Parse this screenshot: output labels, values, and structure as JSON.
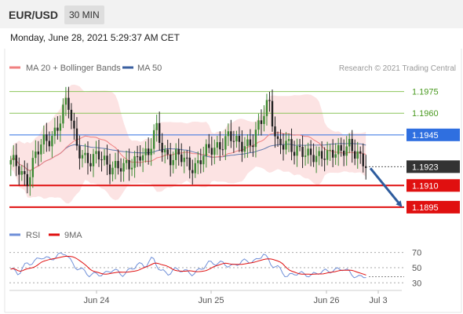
{
  "header": {
    "symbol": "EUR/USD",
    "timeframe": "30 MIN"
  },
  "datetime": "Monday, June 28, 2021 5:29:37 AM CET",
  "legend": {
    "ma20": "MA 20 + Bollinger Bands",
    "ma50": "MA 50",
    "copyright": "Research © 2021 Trading Central"
  },
  "colors": {
    "up": "#3c8a32",
    "down": "#222222",
    "ma20": "#f08080",
    "ma50": "#3a5fa0",
    "band": "#fbd9d9",
    "resistance": "#8cc45a",
    "pivot": "#2f6fe0",
    "support": "#e01010",
    "current": "#333333",
    "rsi": "#6f8fd8",
    "rsi_ma": "#e01010"
  },
  "chart_data": [
    {
      "type": "candlestick",
      "x_ticks": [
        "Jun 24",
        "Jun 25",
        "Jun 26",
        "Jul 3"
      ],
      "ylim": [
        1.1883,
        1.1984
      ],
      "levels": [
        {
          "value": 1.1975,
          "label": "1.1975",
          "kind": "resistance"
        },
        {
          "value": 1.196,
          "label": "1.1960",
          "kind": "resistance"
        },
        {
          "value": 1.1945,
          "label": "1.1945",
          "kind": "pivot"
        },
        {
          "value": 1.1923,
          "label": "1.1923",
          "kind": "current"
        },
        {
          "value": 1.191,
          "label": "1.1910",
          "kind": "support"
        },
        {
          "value": 1.1895,
          "label": "1.1895",
          "kind": "support"
        }
      ],
      "forecast": {
        "from": 1.1923,
        "to": 1.1895
      },
      "key_points": [
        1.1925,
        1.1921,
        1.1915,
        1.193,
        1.1938,
        1.1944,
        1.1955,
        1.1968,
        1.194,
        1.1932,
        1.1925,
        1.193,
        1.1926,
        1.1923,
        1.192,
        1.1926,
        1.1934,
        1.1928,
        1.195,
        1.1935,
        1.1927,
        1.1929,
        1.1926,
        1.1924,
        1.193,
        1.1936,
        1.194,
        1.1943,
        1.1938,
        1.194,
        1.1941,
        1.1952,
        1.197,
        1.194,
        1.1937,
        1.1933,
        1.1938,
        1.193,
        1.1926,
        1.1934,
        1.1935,
        1.193,
        1.1938,
        1.1934,
        1.1923
      ]
    },
    {
      "type": "line",
      "series": [
        {
          "name": "RSI"
        },
        {
          "name": "9MA"
        }
      ],
      "y_ticks": [
        70,
        50,
        30
      ],
      "ylim": [
        22,
        80
      ],
      "rsi_key_points": [
        48,
        40,
        55,
        60,
        65,
        58,
        66,
        72,
        52,
        45,
        40,
        44,
        42,
        46,
        40,
        48,
        55,
        50,
        62,
        48,
        43,
        46,
        45,
        44,
        48,
        54,
        55,
        58,
        52,
        55,
        58,
        60,
        70,
        52,
        48,
        40,
        44,
        40,
        38,
        46,
        47,
        44,
        48,
        45,
        38,
        38
      ]
    }
  ]
}
